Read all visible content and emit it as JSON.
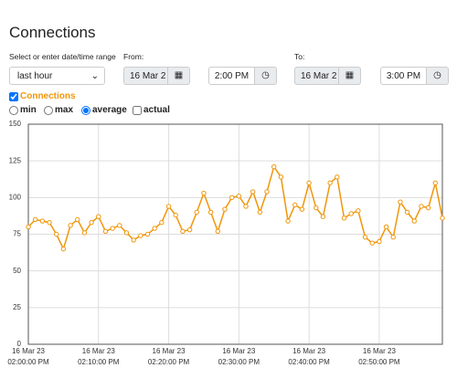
{
  "header": {
    "title": "Connections"
  },
  "controls": {
    "range_label": "Select or enter date/time range",
    "range_value": "last hour",
    "from_label": "From:",
    "from_date": "16 Mar 2",
    "from_time": "2:00 PM",
    "to_label": "To:",
    "to_date": "16 Mar 2",
    "to_time": "3:00 PM"
  },
  "options": [
    "min",
    "max",
    "average",
    "actual"
  ],
  "chart_data": {
    "type": "line",
    "x": [
      "16 Mar 23 02:00:00 PM",
      "16 Mar 23 02:01:00 PM",
      "16 Mar 23 02:02:00 PM",
      "16 Mar 23 02:03:00 PM",
      "16 Mar 23 02:04:00 PM",
      "16 Mar 23 02:05:00 PM",
      "16 Mar 23 02:06:00 PM",
      "16 Mar 23 02:07:00 PM",
      "16 Mar 23 02:08:00 PM",
      "16 Mar 23 02:09:00 PM",
      "16 Mar 23 02:10:00 PM",
      "16 Mar 23 02:11:00 PM",
      "16 Mar 23 02:12:00 PM",
      "16 Mar 23 02:13:00 PM",
      "16 Mar 23 02:14:00 PM",
      "16 Mar 23 02:15:00 PM",
      "16 Mar 23 02:16:00 PM",
      "16 Mar 23 02:17:00 PM",
      "16 Mar 23 02:18:00 PM",
      "16 Mar 23 02:19:00 PM",
      "16 Mar 23 02:20:00 PM",
      "16 Mar 23 02:21:00 PM",
      "16 Mar 23 02:22:00 PM",
      "16 Mar 23 02:23:00 PM",
      "16 Mar 23 02:24:00 PM",
      "16 Mar 23 02:25:00 PM",
      "16 Mar 23 02:26:00 PM",
      "16 Mar 23 02:27:00 PM",
      "16 Mar 23 02:28:00 PM",
      "16 Mar 23 02:29:00 PM",
      "16 Mar 23 02:30:00 PM",
      "16 Mar 23 02:31:00 PM",
      "16 Mar 23 02:32:00 PM",
      "16 Mar 23 02:33:00 PM",
      "16 Mar 23 02:34:00 PM",
      "16 Mar 23 02:35:00 PM",
      "16 Mar 23 02:36:00 PM",
      "16 Mar 23 02:37:00 PM",
      "16 Mar 23 02:38:00 PM",
      "16 Mar 23 02:39:00 PM",
      "16 Mar 23 02:40:00 PM",
      "16 Mar 23 02:41:00 PM",
      "16 Mar 23 02:42:00 PM",
      "16 Mar 23 02:43:00 PM",
      "16 Mar 23 02:44:00 PM",
      "16 Mar 23 02:45:00 PM",
      "16 Mar 23 02:46:00 PM",
      "16 Mar 23 02:47:00 PM",
      "16 Mar 23 02:48:00 PM",
      "16 Mar 23 02:49:00 PM",
      "16 Mar 23 02:50:00 PM",
      "16 Mar 23 02:51:00 PM",
      "16 Mar 23 02:52:00 PM",
      "16 Mar 23 02:53:00 PM",
      "16 Mar 23 02:54:00 PM",
      "16 Mar 23 02:55:00 PM",
      "16 Mar 23 02:56:00 PM",
      "16 Mar 23 02:57:00 PM",
      "16 Mar 23 02:58:00 PM",
      "16 Mar 23 02:59:00 PM"
    ],
    "series": [
      {
        "name": "Connections",
        "color": "#f0960a",
        "values": [
          80,
          85,
          84,
          83,
          75,
          65,
          81,
          85,
          76,
          83,
          87,
          77,
          79,
          81,
          76,
          71,
          74,
          75,
          79,
          83,
          94,
          88,
          77,
          78,
          90,
          103,
          90,
          77,
          92,
          100,
          101,
          94,
          104,
          90,
          104,
          121,
          114,
          84,
          95,
          92,
          110,
          93,
          87,
          110,
          114,
          86,
          89,
          91,
          73,
          69,
          70,
          80,
          73,
          97,
          90,
          84,
          94,
          93,
          110,
          86
        ]
      }
    ],
    "xlim": [
      "16 Mar 23 02:00:00 PM",
      "16 Mar 23 02:59:00 PM"
    ],
    "xticks": [
      "16 Mar 23 02:00:00 PM",
      "16 Mar 23 02:10:00 PM",
      "16 Mar 23 02:20:00 PM",
      "16 Mar 23 02:30:00 PM",
      "16 Mar 23 02:40:00 PM",
      "16 Mar 23 02:50:00 PM"
    ],
    "ylim": [
      0,
      150
    ],
    "yticks": [
      0,
      25,
      50,
      75,
      100,
      125,
      150
    ],
    "grid": true
  }
}
